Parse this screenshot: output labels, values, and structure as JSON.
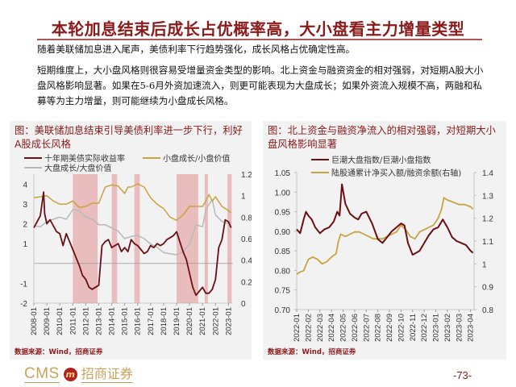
{
  "page": {
    "title": "本轮加息结束后成长占优概率高，大小盘看主力增量类型",
    "paragraphs": [
      "随着美联储加息进入尾声，美债利率下行趋势强化，成长风格占优确定性高。",
      "短期维度上，大小盘风格则很容易受增量资金类型的影响。北上资金与融资资金的相对强弱，对短期A股大小盘风格影响显著。如果在5-6月外资加速流入，则更可能表现为大盘成长；如果外资流入规模不高，两融和私募等为主力增量，则可能继续为小盘成长风格。"
    ],
    "footer": {
      "brand_en": "CMS",
      "brand_mark": "m",
      "brand_cn": "招商证券",
      "page_number": "-73-"
    }
  },
  "colors": {
    "title": "#8b1a1a",
    "series_dark_red": "#6b0f14",
    "series_gold": "#c9a340",
    "series_gray": "#b8b8b8",
    "shade": "#e8b4b4",
    "panel_bg": "#f2f2f2"
  },
  "chart_data": [
    {
      "type": "line",
      "title": "图：美联储加息结束引导美债利率进一步下行，利好A股成长风格",
      "legend": [
        "十年期美债实际收益率",
        "小盘成长/小盘价值",
        "大盘成长/大盘价值"
      ],
      "legend_position": "top",
      "source": "数据来源：Wind，招商证券",
      "x_tick_labels": [
        "2008-01",
        "2009-01",
        "2010-01",
        "2011-01",
        "2012-01",
        "2013-01",
        "2014-01",
        "2015-01",
        "2016-01",
        "2017-01",
        "2018-01",
        "2019-01",
        "2020-01",
        "2021-01",
        "2022-01",
        "2023-01"
      ],
      "left_axis": {
        "ticks": [
          "-2",
          "-1",
          "1",
          "2",
          "3",
          "4"
        ],
        "range": [
          -2,
          4.5
        ],
        "note": "zero shown as horizontal line without label"
      },
      "right_axis": {
        "ticks": [
          "0",
          "0.2",
          "0.4",
          "0.6",
          "0.8",
          "1",
          "1.2"
        ],
        "range": [
          0,
          1.2
        ]
      },
      "shaded_periods": [
        [
          "2011-01",
          "2012-12"
        ],
        [
          "2014-01",
          "2014-06"
        ],
        [
          "2015-10",
          "2016-03"
        ],
        [
          "2019-01",
          "2020-09"
        ],
        [
          "2021-03",
          "2021-06"
        ],
        [
          "2022-12",
          "2023-04"
        ]
      ],
      "series": [
        {
          "name": "十年期美债实际收益率",
          "axis": "left",
          "color": "#6b0f14",
          "x": [
            2008.0,
            2008.25,
            2008.5,
            2008.75,
            2008.83,
            2009.0,
            2009.25,
            2009.5,
            2009.75,
            2010.0,
            2010.25,
            2010.5,
            2010.75,
            2011.0,
            2011.25,
            2011.5,
            2011.75,
            2012.0,
            2012.25,
            2012.5,
            2012.75,
            2013.0,
            2013.25,
            2013.5,
            2013.75,
            2014.0,
            2014.25,
            2014.5,
            2014.75,
            2015.0,
            2015.25,
            2015.5,
            2015.75,
            2016.0,
            2016.25,
            2016.5,
            2016.75,
            2017.0,
            2017.25,
            2017.5,
            2017.75,
            2018.0,
            2018.25,
            2018.5,
            2018.75,
            2019.0,
            2019.25,
            2019.5,
            2019.75,
            2020.0,
            2020.25,
            2020.5,
            2020.75,
            2021.0,
            2021.25,
            2021.5,
            2021.75,
            2022.0,
            2022.25,
            2022.5,
            2022.75,
            2023.0,
            2023.2
          ],
          "values": [
            1.8,
            2.1,
            2.4,
            3.6,
            2.5,
            2.0,
            2.2,
            1.9,
            1.6,
            1.5,
            0.9,
            1.5,
            1.1,
            0.7,
            0.3,
            -0.1,
            -0.6,
            -0.8,
            -1.2,
            -1.3,
            -1.2,
            -1.1,
            0.9,
            1.1,
            1.2,
            0.8,
            0.9,
            1.0,
            0.6,
            0.8,
            0.6,
            1.2,
            1.0,
            0.9,
            0.7,
            0.5,
            0.6,
            0.9,
            0.8,
            1.0,
            0.9,
            1.0,
            1.2,
            1.3,
            1.4,
            1.6,
            1.1,
            0.6,
            0.2,
            -0.5,
            -1.2,
            -1.6,
            -1.4,
            -1.2,
            -1.5,
            -1.5,
            -1.3,
            -0.8,
            0.8,
            1.2,
            2.2,
            2.1,
            1.8
          ]
        },
        {
          "name": "小盘成长/小盘价值",
          "axis": "right",
          "color": "#c9a340",
          "x": [
            2008.0,
            2008.5,
            2009.0,
            2009.5,
            2010.0,
            2010.5,
            2011.0,
            2011.5,
            2012.0,
            2012.5,
            2013.0,
            2013.5,
            2014.0,
            2014.5,
            2015.0,
            2015.25,
            2015.5,
            2016.0,
            2016.5,
            2017.0,
            2017.5,
            2018.0,
            2018.5,
            2019.0,
            2019.5,
            2020.0,
            2020.5,
            2021.0,
            2021.25,
            2021.5,
            2021.75,
            2022.0,
            2022.5,
            2023.0,
            2023.2
          ],
          "values": [
            0.98,
            0.99,
            1.0,
            0.95,
            0.92,
            0.92,
            0.95,
            0.89,
            0.9,
            0.93,
            0.93,
            1.08,
            1.1,
            1.09,
            1.02,
            1.08,
            1.08,
            1.11,
            1.08,
            0.98,
            0.92,
            0.88,
            0.8,
            0.77,
            0.82,
            0.9,
            0.9,
            0.9,
            0.95,
            1.01,
            0.95,
            0.99,
            0.9,
            0.86,
            0.84
          ]
        },
        {
          "name": "大盘成长/大盘价值",
          "axis": "right",
          "color": "#b8b8b8",
          "x": [
            2008.0,
            2008.5,
            2009.0,
            2009.5,
            2010.0,
            2010.5,
            2011.0,
            2011.5,
            2012.0,
            2012.5,
            2013.0,
            2013.5,
            2014.0,
            2014.5,
            2015.0,
            2015.5,
            2016.0,
            2016.5,
            2017.0,
            2017.5,
            2018.0,
            2018.5,
            2019.0,
            2019.5,
            2020.0,
            2020.5,
            2021.0,
            2021.25,
            2021.5,
            2021.75,
            2022.0,
            2022.5,
            2023.0,
            2023.2
          ],
          "values": [
            0.72,
            0.71,
            0.76,
            0.78,
            0.8,
            0.78,
            0.87,
            0.86,
            0.8,
            0.78,
            0.73,
            0.73,
            0.7,
            0.67,
            0.6,
            0.62,
            0.63,
            0.6,
            0.55,
            0.52,
            0.47,
            0.46,
            0.45,
            0.48,
            0.55,
            0.73,
            0.71,
            0.86,
            0.92,
            0.96,
            0.82,
            0.76,
            0.74,
            0.76
          ]
        }
      ]
    },
    {
      "type": "line",
      "title": "图：北上资金与融资净流入的相对强弱，对短期大小盘风格影响显著",
      "legend": [
        "巨潮大盘指数/巨潮小盘指数",
        "陆股通累计净买入额/融资余额(右轴)"
      ],
      "legend_position": "top",
      "source": "数据来源：Wind，招商证券",
      "x_tick_labels": [
        "2022-01",
        "2022-02",
        "2022-03",
        "2022-04",
        "2022-05",
        "2022-06",
        "2022-07",
        "2022-08",
        "2022-09",
        "2022-10",
        "2022-11",
        "2022-12",
        "2023-01",
        "2023-02",
        "2023-03",
        "2023-04"
      ],
      "left_axis": {
        "ticks": [
          "0.70",
          "0.75",
          "0.80",
          "0.85",
          "0.90",
          "0.95",
          "1.00",
          "1.05"
        ],
        "range": [
          0.7,
          1.05
        ]
      },
      "right_axis": {
        "ticks": [
          "0.8",
          "0.9",
          "1",
          "1.1",
          "1.2",
          "1.3",
          "1.4"
        ],
        "range": [
          0.8,
          1.4
        ]
      },
      "series": [
        {
          "name": "巨潮大盘指数/巨潮小盘指数",
          "axis": "left",
          "color": "#6b0f14",
          "x": [
            0,
            0.3,
            0.6,
            0.8,
            1.0,
            1.3,
            1.6,
            2.0,
            2.4,
            2.8,
            3.2,
            3.5,
            3.7,
            3.9,
            4.2,
            4.6,
            5.0,
            5.3,
            5.6,
            6.0,
            6.5,
            7.0,
            7.4,
            7.8,
            8.2,
            8.6,
            9.0,
            9.3,
            9.6,
            10.0,
            10.3,
            10.6,
            11.0,
            11.4,
            11.8,
            12.2,
            12.6,
            13.0,
            13.4,
            13.8,
            14.2,
            14.6,
            15.0,
            15.2
          ],
          "values": [
            0.905,
            0.895,
            0.93,
            0.95,
            0.94,
            0.93,
            0.91,
            0.895,
            0.905,
            0.91,
            0.925,
            0.95,
            0.94,
            1.02,
            0.97,
            0.945,
            0.935,
            0.93,
            0.945,
            0.95,
            0.92,
            0.88,
            0.87,
            0.885,
            0.9,
            0.91,
            0.92,
            0.915,
            0.87,
            0.84,
            0.845,
            0.85,
            0.87,
            0.89,
            0.905,
            0.91,
            0.93,
            0.91,
            0.885,
            0.875,
            0.87,
            0.865,
            0.85,
            0.845
          ]
        },
        {
          "name": "陆股通累计净买入额/融资余额(右轴)",
          "axis": "right",
          "color": "#c9a340",
          "x": [
            0,
            0.3,
            0.6,
            1.0,
            1.4,
            1.8,
            2.2,
            2.6,
            3.0,
            3.4,
            3.6,
            3.8,
            4.2,
            4.6,
            5.0,
            5.4,
            5.8,
            6.2,
            6.6,
            7.0,
            7.4,
            7.8,
            8.2,
            8.6,
            9.0,
            9.4,
            9.8,
            10.2,
            10.6,
            11.0,
            11.4,
            11.8,
            12.2,
            12.5,
            12.7,
            13.0,
            13.5,
            14.0,
            14.5,
            15.0,
            15.2
          ],
          "values": [
            0.955,
            0.965,
            0.97,
            1.02,
            1.03,
            1.02,
            1.0,
            1.01,
            1.03,
            1.045,
            1.1,
            1.13,
            1.12,
            1.13,
            1.14,
            1.14,
            1.13,
            1.12,
            1.11,
            1.11,
            1.11,
            1.12,
            1.13,
            1.14,
            1.17,
            1.15,
            1.12,
            1.11,
            1.14,
            1.15,
            1.16,
            1.17,
            1.2,
            1.24,
            1.29,
            1.28,
            1.27,
            1.26,
            1.26,
            1.25,
            1.24
          ]
        }
      ]
    }
  ]
}
